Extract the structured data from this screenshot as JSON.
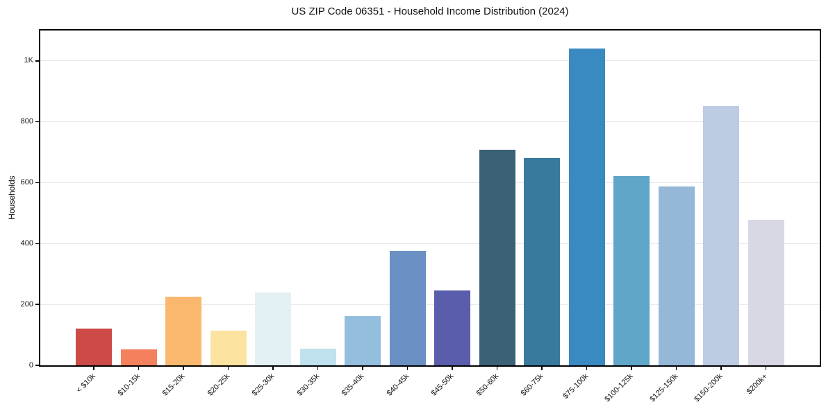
{
  "chart_data": {
    "type": "bar",
    "title": "US ZIP Code 06351 - Household Income Distribution (2024)",
    "xlabel": "",
    "ylabel": "Households",
    "ylim": [
      0,
      1100
    ],
    "grid": true,
    "legend": false,
    "background_color": "#ffffff",
    "grid_color": "#e8e8e8",
    "axis_color": "#000000",
    "yticks": [
      {
        "value": 0,
        "label": "0"
      },
      {
        "value": 200,
        "label": "200"
      },
      {
        "value": 400,
        "label": "400"
      },
      {
        "value": 600,
        "label": "600"
      },
      {
        "value": 800,
        "label": "800"
      },
      {
        "value": 1000,
        "label": "1K"
      }
    ],
    "categories": [
      "< $10k",
      "$10-15k",
      "$15-20k",
      "$20-25k",
      "$25-30k",
      "$30-35k",
      "$35-40k",
      "$40-45k",
      "$45-50k",
      "$50-60k",
      "$60-75k",
      "$75-100k",
      "$100-125k",
      "$125-150k",
      "$150-200k",
      "$200k+"
    ],
    "values": [
      120,
      52,
      225,
      113,
      240,
      54,
      161,
      375,
      245,
      708,
      682,
      1040,
      621,
      587,
      852,
      478
    ],
    "bar_colors": [
      "#cd4a47",
      "#f4815d",
      "#fab86e",
      "#fde3a0",
      "#e3f0f4",
      "#c0e1ee",
      "#93bedd",
      "#6b90c4",
      "#5a5cac",
      "#3b6175",
      "#38799e",
      "#3a8ac2",
      "#5fa6c8",
      "#95b7d8",
      "#bdcbe3",
      "#d7d8e4"
    ]
  }
}
